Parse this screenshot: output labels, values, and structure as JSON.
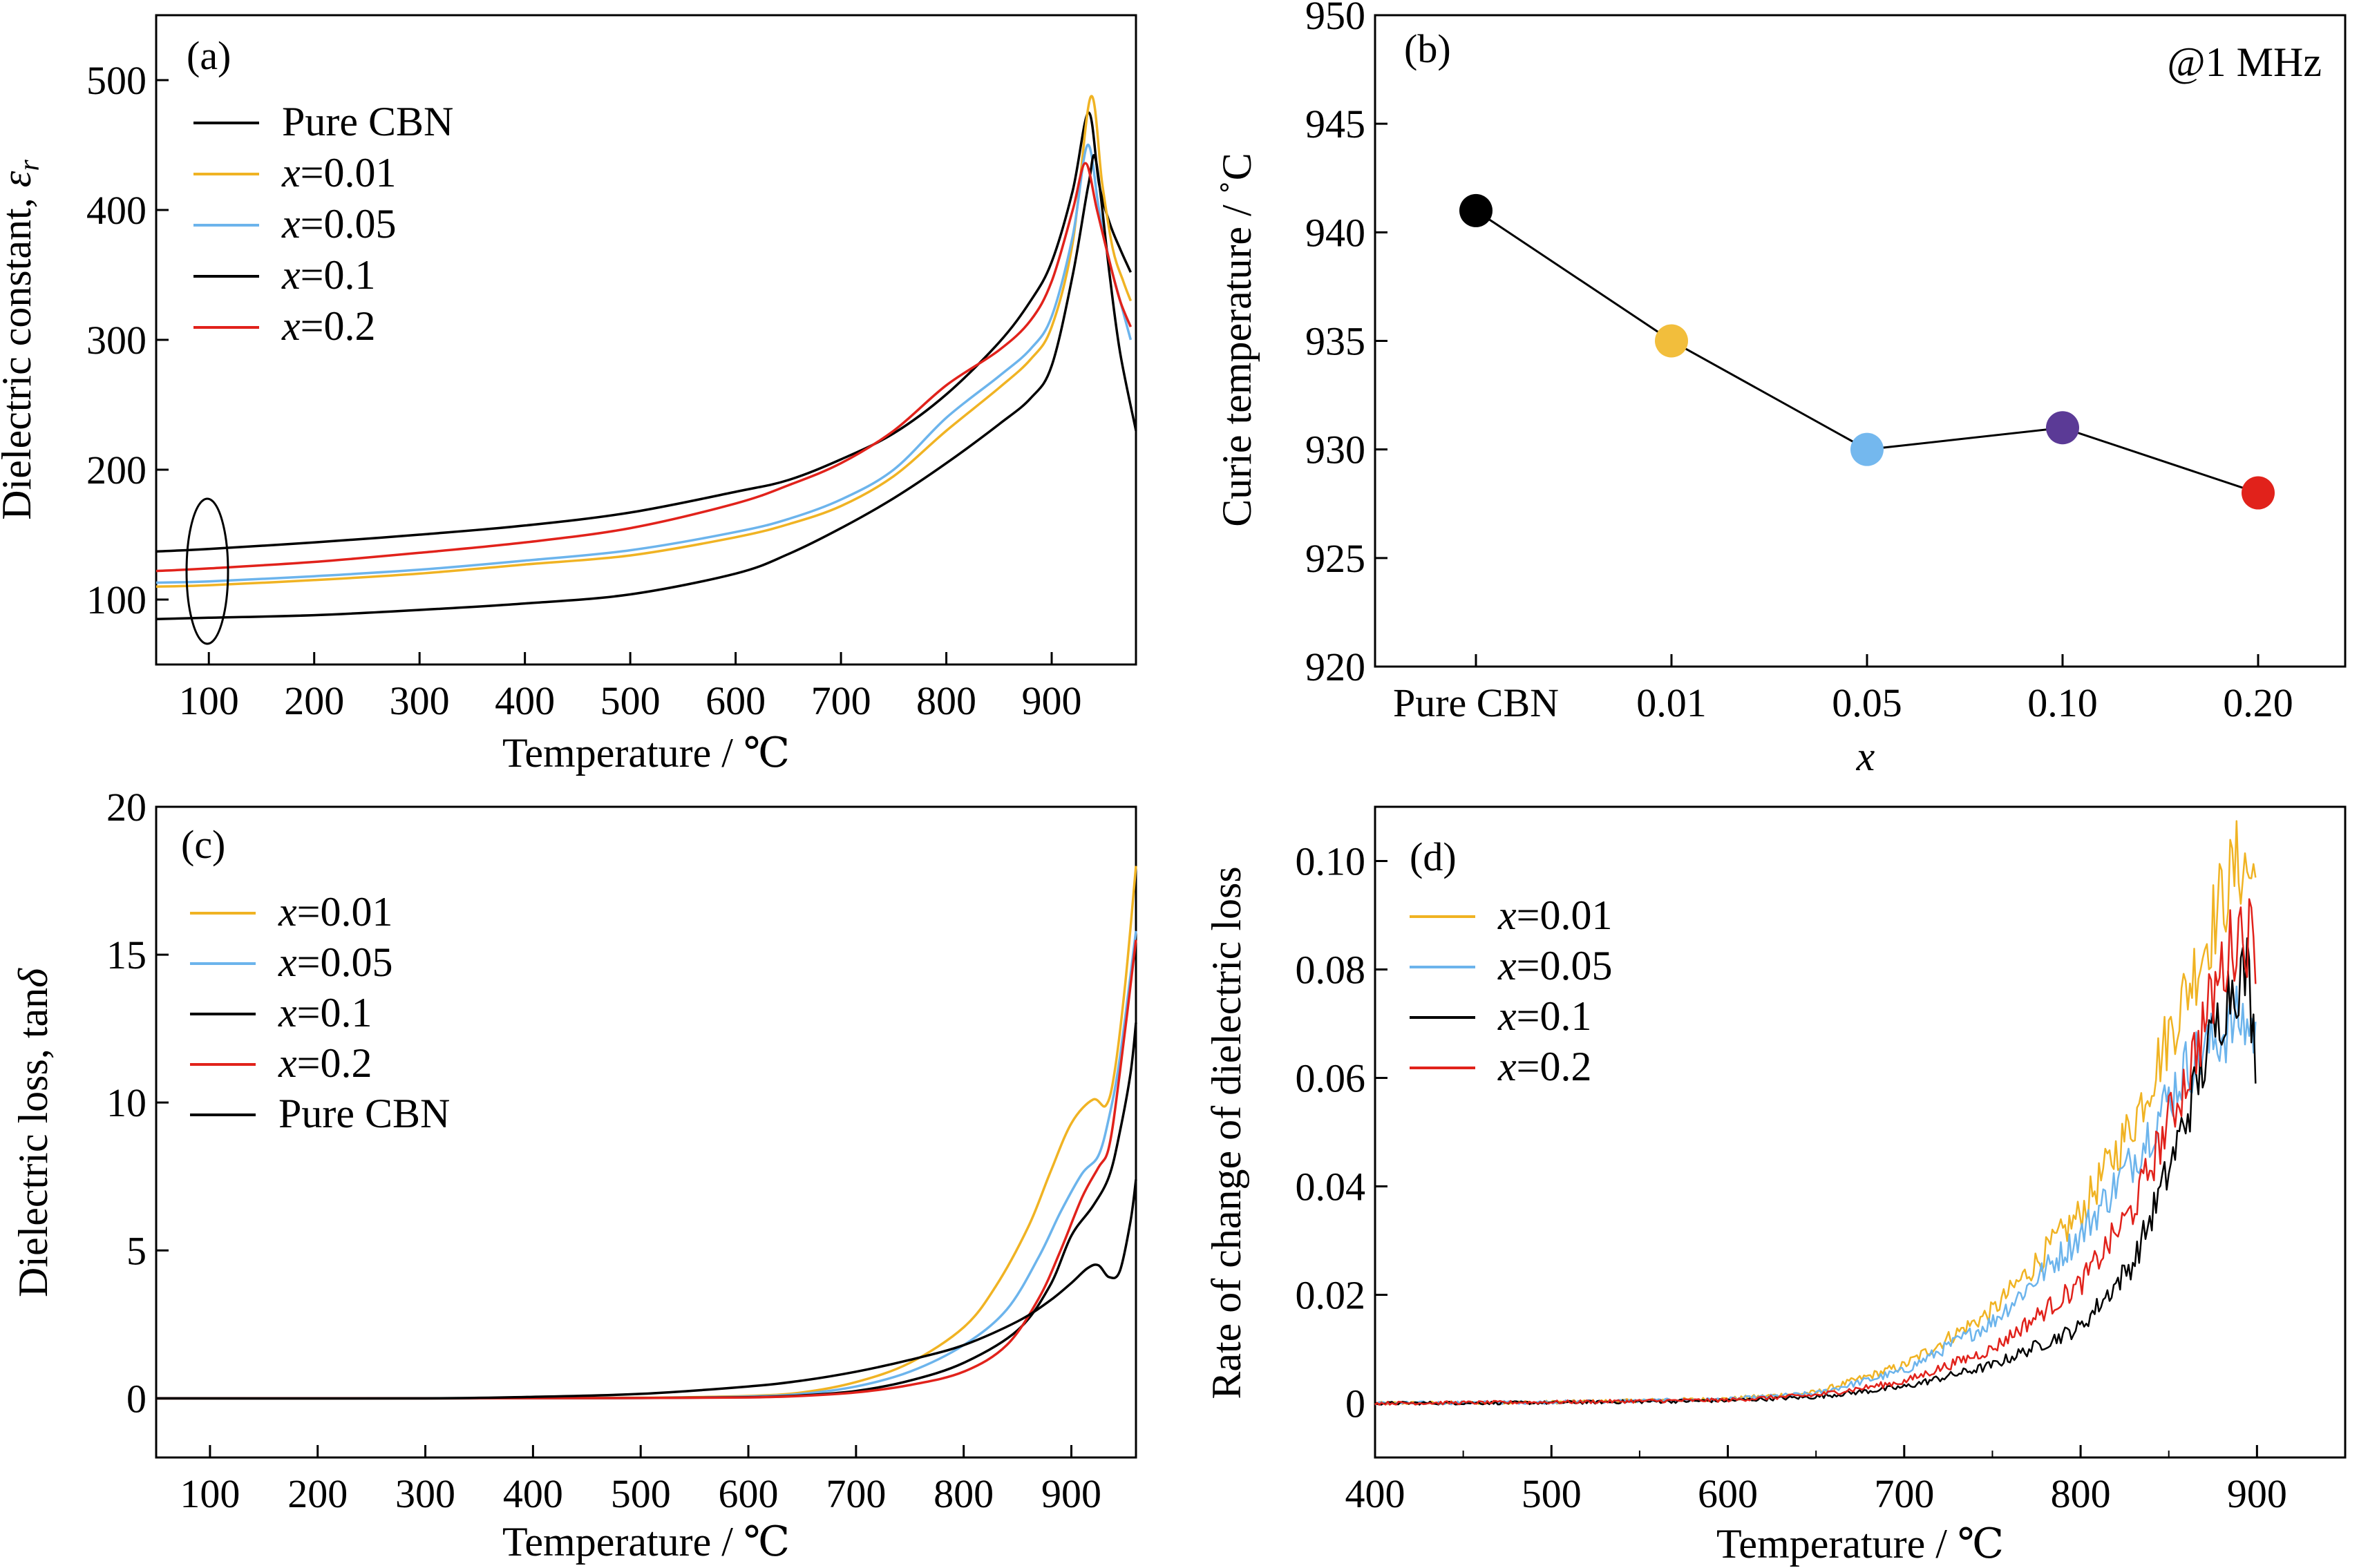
{
  "colors": {
    "black": "#000000",
    "orange": "#F0B323",
    "blue": "#6CB4EC",
    "red": "#E1221B",
    "purple": "#5B3A96",
    "marker_orange": "#F2BE3C",
    "marker_blue": "#74B8EE"
  },
  "chart_data": [
    {
      "type": "line",
      "panel": "(a)",
      "xlabel": "Temperature / ℃",
      "ylabel": "Dielectric constant, εr",
      "xlim": [
        50,
        980
      ],
      "ylim": [
        50,
        550
      ],
      "xticks": [
        100,
        200,
        300,
        400,
        500,
        600,
        700,
        800,
        900
      ],
      "yticks": [
        100,
        200,
        300,
        400,
        500
      ],
      "legend": [
        "Pure CBN",
        "x=0.01",
        "x=0.05",
        "x=0.1",
        "x=0.2"
      ],
      "legend_position": "top-left",
      "annotation": "ellipse around curves at 100 ℃",
      "series": [
        {
          "name": "Pure CBN",
          "color": "#000000",
          "x": [
            50,
            100,
            200,
            300,
            400,
            500,
            600,
            650,
            700,
            750,
            800,
            850,
            880,
            900,
            920,
            935,
            945,
            955,
            965,
            975
          ],
          "y": [
            137,
            139,
            144,
            150,
            157,
            167,
            183,
            192,
            208,
            228,
            258,
            298,
            330,
            360,
            415,
            475,
            420,
            390,
            370,
            352
          ]
        },
        {
          "name": "x=0.01",
          "color": "#F0B323",
          "x": [
            50,
            100,
            200,
            300,
            400,
            500,
            600,
            650,
            700,
            750,
            800,
            850,
            880,
            900,
            920,
            937,
            948,
            958,
            968,
            975
          ],
          "y": [
            110,
            111,
            115,
            120,
            127,
            134,
            148,
            158,
            172,
            195,
            230,
            263,
            285,
            310,
            375,
            487,
            420,
            370,
            345,
            330
          ]
        },
        {
          "name": "x=0.05",
          "color": "#6CB4EC",
          "x": [
            50,
            100,
            200,
            300,
            400,
            500,
            600,
            650,
            700,
            750,
            800,
            850,
            880,
            900,
            920,
            934,
            945,
            955,
            965,
            975
          ],
          "y": [
            113,
            114,
            118,
            123,
            130,
            138,
            152,
            162,
            177,
            200,
            240,
            272,
            293,
            318,
            380,
            450,
            400,
            360,
            330,
            300
          ]
        },
        {
          "name": "x=0.1",
          "color": "#000000",
          "x": [
            50,
            100,
            200,
            300,
            400,
            500,
            600,
            650,
            700,
            750,
            800,
            850,
            880,
            900,
            920,
            935,
            942,
            955,
            965,
            980
          ],
          "y": [
            85,
            86,
            88,
            92,
            97,
            104,
            120,
            135,
            155,
            178,
            205,
            235,
            255,
            280,
            350,
            420,
            438,
            350,
            290,
            230
          ]
        },
        {
          "name": "x=0.2",
          "color": "#E1221B",
          "x": [
            50,
            100,
            200,
            300,
            400,
            500,
            600,
            650,
            700,
            750,
            800,
            850,
            880,
            900,
            920,
            932,
            943,
            955,
            965,
            975
          ],
          "y": [
            122,
            124,
            129,
            136,
            144,
            155,
            174,
            188,
            205,
            230,
            265,
            292,
            315,
            345,
            400,
            436,
            400,
            360,
            330,
            310
          ]
        }
      ]
    },
    {
      "type": "line",
      "panel": "(b)",
      "annotation": "@1 MHz",
      "xlabel": "x",
      "ylabel": "Curie temperature / ˚C",
      "categories": [
        "Pure CBN",
        "0.01",
        "0.05",
        "0.10",
        "0.20"
      ],
      "ylim": [
        920,
        950
      ],
      "yticks": [
        920,
        925,
        930,
        935,
        940,
        945,
        950
      ],
      "values": [
        941,
        935,
        930,
        931,
        928
      ],
      "marker_colors": [
        "#000000",
        "#F2BE3C",
        "#74B8EE",
        "#5B3A96",
        "#E1221B"
      ]
    },
    {
      "type": "line",
      "panel": "(c)",
      "xlabel": "Temperature / ℃",
      "ylabel": "Dielectric loss, tanδ",
      "xlim": [
        50,
        960
      ],
      "ylim": [
        -2,
        20
      ],
      "xticks": [
        100,
        200,
        300,
        400,
        500,
        600,
        700,
        800,
        900
      ],
      "yticks": [
        0,
        5,
        10,
        15,
        20
      ],
      "legend": [
        "x=0.01",
        "x=0.05",
        "x=0.1",
        "x=0.2",
        "Pure CBN"
      ],
      "legend_position": "top-left",
      "series": [
        {
          "name": "x=0.01",
          "color": "#F0B323",
          "x": [
            50,
            300,
            500,
            600,
            650,
            700,
            750,
            800,
            830,
            860,
            880,
            900,
            920,
            932,
            940,
            950,
            960
          ],
          "y": [
            0,
            0,
            0.02,
            0.08,
            0.2,
            0.55,
            1.2,
            2.4,
            3.8,
            5.8,
            7.6,
            9.3,
            10.1,
            9.9,
            11,
            14,
            18
          ]
        },
        {
          "name": "x=0.05",
          "color": "#6CB4EC",
          "x": [
            50,
            300,
            500,
            600,
            650,
            700,
            750,
            800,
            840,
            870,
            890,
            910,
            925,
            935,
            945,
            960
          ],
          "y": [
            0,
            0,
            0.01,
            0.06,
            0.15,
            0.4,
            0.9,
            1.8,
            3,
            4.8,
            6.3,
            7.6,
            8.2,
            9.5,
            11.5,
            15.8
          ]
        },
        {
          "name": "x=0.1",
          "color": "#000000",
          "x": [
            50,
            300,
            500,
            600,
            650,
            700,
            750,
            800,
            850,
            880,
            900,
            920,
            935,
            945,
            955,
            960
          ],
          "y": [
            0,
            0,
            0.01,
            0.04,
            0.1,
            0.25,
            0.6,
            1.2,
            2.3,
            3.8,
            5.5,
            6.5,
            7.5,
            9,
            11,
            12.7
          ]
        },
        {
          "name": "x=0.2",
          "color": "#E1221B",
          "x": [
            50,
            300,
            500,
            600,
            650,
            700,
            750,
            800,
            840,
            870,
            890,
            910,
            925,
            935,
            945,
            960
          ],
          "y": [
            0,
            0,
            0.01,
            0.03,
            0.08,
            0.2,
            0.45,
            0.9,
            1.8,
            3.4,
            5,
            6.8,
            7.8,
            8.5,
            11,
            15.5
          ]
        },
        {
          "name": "Pure CBN",
          "color": "#000000",
          "x": [
            50,
            300,
            400,
            500,
            600,
            650,
            700,
            750,
            800,
            850,
            880,
            900,
            915,
            925,
            935,
            945,
            955,
            960
          ],
          "y": [
            0,
            0,
            0.05,
            0.15,
            0.4,
            0.6,
            0.9,
            1.3,
            1.8,
            2.6,
            3.3,
            3.9,
            4.4,
            4.5,
            4.1,
            4.3,
            6,
            7.4
          ]
        }
      ]
    },
    {
      "type": "line",
      "panel": "(d)",
      "xlabel": "Temperature / ℃",
      "ylabel": "Rate of change of dielectric loss",
      "xlim": [
        400,
        950
      ],
      "ylim": [
        -0.01,
        0.11
      ],
      "xticks": [
        400,
        500,
        600,
        700,
        800,
        900
      ],
      "yticks": [
        0,
        0.02,
        0.04,
        0.06,
        0.08,
        0.1
      ],
      "ytick_labels": [
        "0",
        "0.02",
        "0.04",
        "0.06",
        "0.08",
        "0.10"
      ],
      "legend": [
        "x=0.01",
        "x=0.05",
        "x=0.1",
        "x=0.2"
      ],
      "legend_position": "top-left",
      "series": [
        {
          "name": "x=0.01",
          "color": "#F0B323",
          "x": [
            400,
            500,
            600,
            650,
            700,
            750,
            800,
            830,
            860,
            880,
            890,
            900
          ],
          "y": [
            0,
            0.0002,
            0.0008,
            0.002,
            0.007,
            0.017,
            0.035,
            0.052,
            0.076,
            0.093,
            0.1,
            0.096
          ]
        },
        {
          "name": "x=0.05",
          "color": "#6CB4EC",
          "x": [
            400,
            500,
            600,
            650,
            700,
            750,
            800,
            830,
            860,
            880,
            890,
            900
          ],
          "y": [
            0,
            0.0002,
            0.0007,
            0.0018,
            0.006,
            0.015,
            0.031,
            0.045,
            0.062,
            0.068,
            0.071,
            0.068
          ]
        },
        {
          "name": "x=0.1",
          "color": "#000000",
          "x": [
            400,
            500,
            600,
            650,
            700,
            750,
            800,
            830,
            850,
            870,
            885,
            895,
            900
          ],
          "y": [
            0,
            0.0001,
            0.0005,
            0.0012,
            0.003,
            0.007,
            0.014,
            0.026,
            0.043,
            0.063,
            0.077,
            0.08,
            0.06
          ]
        },
        {
          "name": "x=0.2",
          "color": "#E1221B",
          "x": [
            400,
            500,
            600,
            650,
            700,
            750,
            800,
            830,
            860,
            880,
            890,
            900
          ],
          "y": [
            0,
            0.0002,
            0.0006,
            0.0015,
            0.004,
            0.01,
            0.022,
            0.036,
            0.06,
            0.08,
            0.088,
            0.085
          ]
        }
      ]
    }
  ]
}
